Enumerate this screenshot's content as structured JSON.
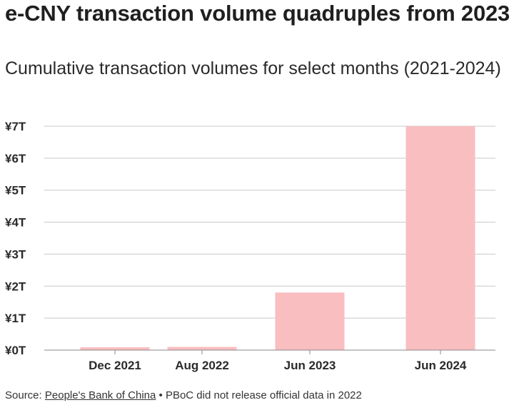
{
  "title": "e-CNY transaction volume quadruples from 2023",
  "subtitle": "Cumulative transaction volumes for select months (2021-2024)",
  "source": {
    "prefix": "Source:",
    "link_text": "People's Bank of China",
    "separator": "•",
    "note": "PBoC did not release official data in 2022"
  },
  "colors": {
    "bar": "#f9bec0",
    "grid": "#c8c8c8",
    "axis": "#8a8a8a",
    "text": "#2a2a2a"
  },
  "chart_data": {
    "type": "bar",
    "title": "e-CNY transaction volume quadruples from 2023",
    "subtitle": "Cumulative transaction volumes for select months (2021-2024)",
    "xlabel": "",
    "ylabel": "",
    "unit": "trillion yuan",
    "categories": [
      "Dec 2021",
      "Aug 2022",
      "Jun 2023",
      "Jun 2024"
    ],
    "values": [
      0.09,
      0.1,
      1.8,
      7.0
    ],
    "ylim": [
      0,
      7
    ],
    "yticks": [
      0,
      1,
      2,
      3,
      4,
      5,
      6,
      7
    ],
    "ytick_labels": [
      "¥0T",
      "¥1T",
      "¥2T",
      "¥3T",
      "¥4T",
      "¥5T",
      "¥6T",
      "¥7T"
    ],
    "grid": true,
    "legend": "none"
  }
}
